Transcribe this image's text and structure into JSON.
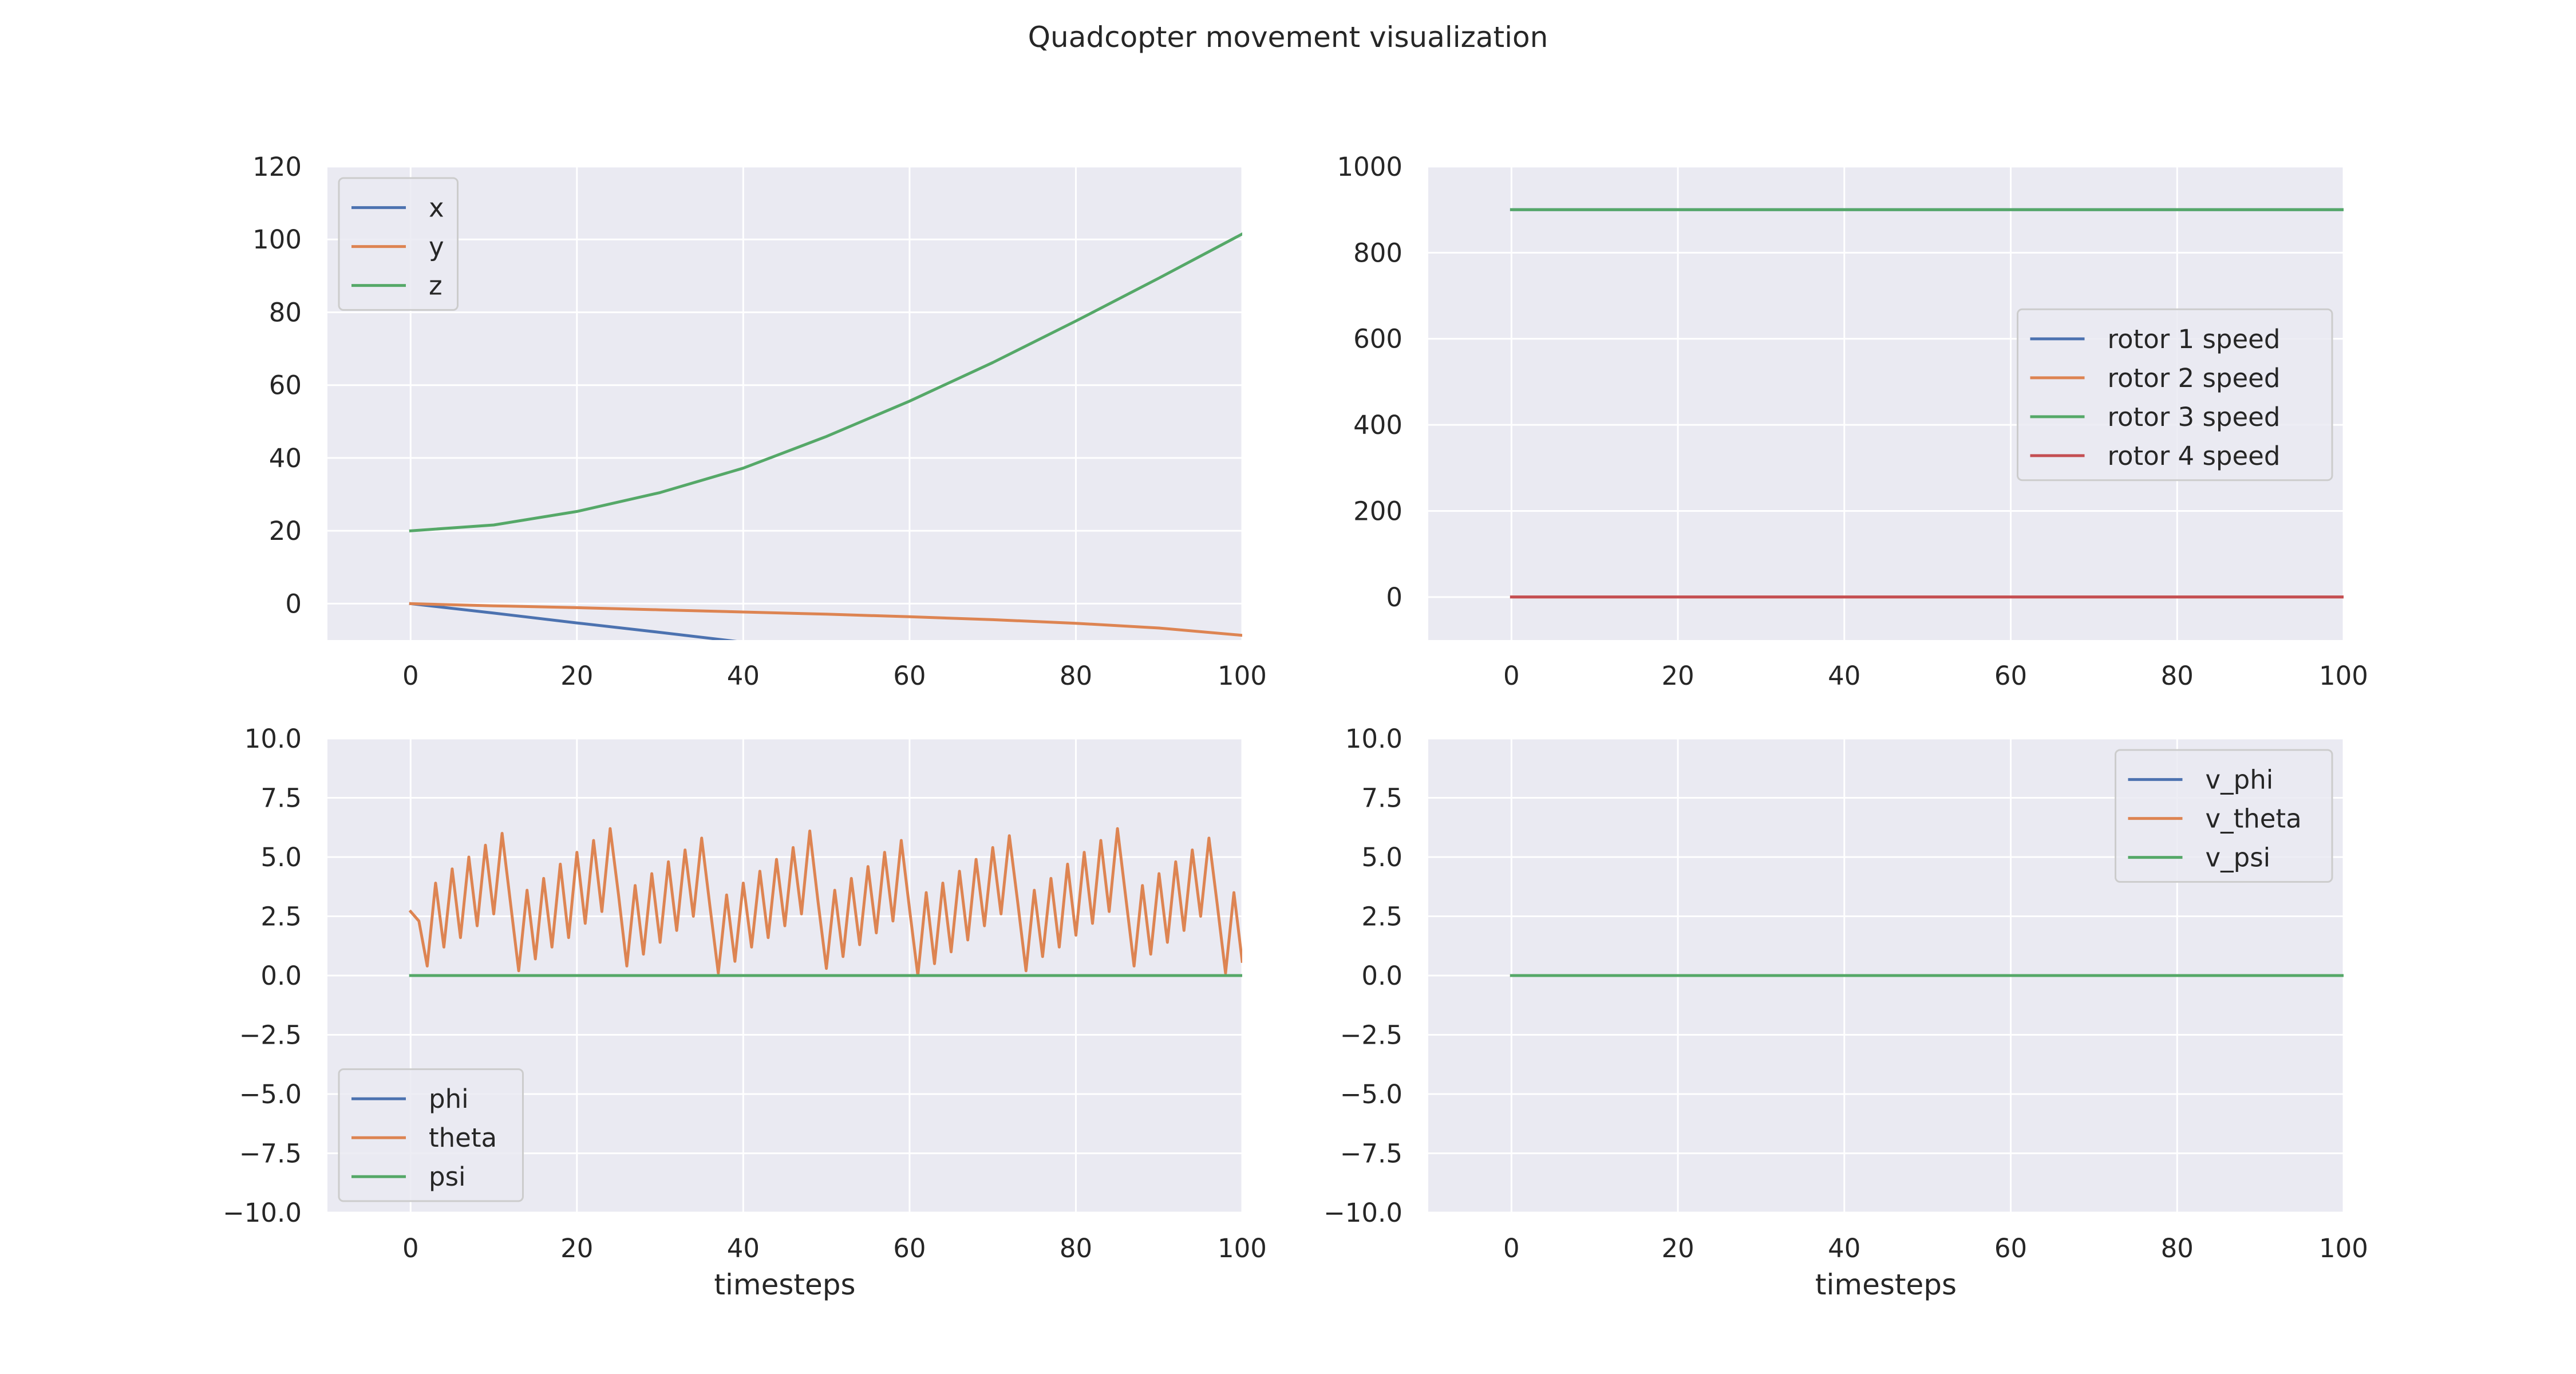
{
  "figure": {
    "title": "Quadcopter movement visualization"
  },
  "chart_data": [
    {
      "type": "line",
      "xlabel": "",
      "ylabel": "",
      "xlim": [
        -10,
        100
      ],
      "ylim": [
        -10,
        120
      ],
      "xticks": [
        0,
        20,
        40,
        60,
        80,
        100
      ],
      "yticks": [
        0,
        20,
        40,
        60,
        80,
        100,
        120
      ],
      "ytick_labels": [
        "0",
        "20",
        "40",
        "60",
        "80",
        "100",
        "120"
      ],
      "grid": true,
      "legend": "upper left",
      "series": [
        {
          "name": "x",
          "color": "#4c72b0",
          "x": [
            0,
            10,
            20,
            30,
            40,
            50
          ],
          "y": [
            0,
            -2.6,
            -5.3,
            -7.9,
            -10.6,
            -13.2
          ]
        },
        {
          "name": "y",
          "color": "#dd8452",
          "x": [
            0,
            10,
            20,
            30,
            40,
            50,
            60,
            70,
            80,
            90,
            100
          ],
          "y": [
            0,
            -0.6,
            -1.1,
            -1.7,
            -2.3,
            -2.9,
            -3.6,
            -4.4,
            -5.4,
            -6.7,
            -8.7
          ]
        },
        {
          "name": "z",
          "color": "#55a868",
          "x": [
            0,
            10,
            20,
            30,
            40,
            50,
            60,
            70,
            80,
            90,
            100
          ],
          "y": [
            20,
            21.6,
            25.3,
            30.5,
            37.2,
            45.9,
            55.6,
            66.2,
            77.6,
            89.4,
            101.5
          ]
        }
      ]
    },
    {
      "type": "line",
      "xlabel": "",
      "ylabel": "",
      "xlim": [
        -10,
        100
      ],
      "ylim": [
        -100,
        1000
      ],
      "xticks": [
        0,
        20,
        40,
        60,
        80,
        100
      ],
      "yticks": [
        0,
        200,
        400,
        600,
        800,
        1000
      ],
      "ytick_labels": [
        "0",
        "200",
        "400",
        "600",
        "800",
        "1000"
      ],
      "grid": true,
      "legend": "center right",
      "series": [
        {
          "name": "rotor 1 speed",
          "color": "#4c72b0",
          "x": [
            0,
            100
          ],
          "y": [
            900,
            900
          ]
        },
        {
          "name": "rotor 2 speed",
          "color": "#dd8452",
          "x": [
            0,
            100
          ],
          "y": [
            0,
            0
          ]
        },
        {
          "name": "rotor 3 speed",
          "color": "#55a868",
          "x": [
            0,
            100
          ],
          "y": [
            900,
            900
          ]
        },
        {
          "name": "rotor 4 speed",
          "color": "#c44e52",
          "x": [
            0,
            100
          ],
          "y": [
            0,
            0
          ]
        }
      ]
    },
    {
      "type": "line",
      "xlabel": "timesteps",
      "ylabel": "",
      "xlim": [
        -10,
        100
      ],
      "ylim": [
        -10,
        10
      ],
      "xticks": [
        0,
        20,
        40,
        60,
        80,
        100
      ],
      "yticks": [
        -10,
        -7.5,
        -5,
        -2.5,
        0,
        2.5,
        5,
        7.5,
        10
      ],
      "ytick_labels": [
        "−10.0",
        "−7.5",
        "−5.0",
        "−2.5",
        "0.0",
        "2.5",
        "5.0",
        "7.5",
        "10.0"
      ],
      "grid": true,
      "legend": "lower left",
      "series": [
        {
          "name": "phi",
          "color": "#4c72b0",
          "x": [
            0,
            100
          ],
          "y": [
            0,
            0
          ]
        },
        {
          "name": "theta",
          "color": "#dd8452",
          "x": [
            0,
            1,
            2,
            3,
            4,
            5,
            6,
            7,
            8,
            9,
            10,
            11,
            12,
            13,
            14,
            15,
            16,
            17,
            18,
            19,
            20,
            21,
            22,
            23,
            24,
            25,
            26,
            27,
            28,
            29,
            30,
            31,
            32,
            33,
            34,
            35,
            36,
            37,
            38,
            39,
            40,
            41,
            42,
            43,
            44,
            45,
            46,
            47,
            48,
            49,
            50,
            51,
            52,
            53,
            54,
            55,
            56,
            57,
            58,
            59,
            60,
            61,
            62,
            63,
            64,
            65,
            66,
            67,
            68,
            69,
            70,
            71,
            72,
            73,
            74,
            75,
            76,
            77,
            78,
            79,
            80,
            81,
            82,
            83,
            84,
            85,
            86,
            87,
            88,
            89,
            90,
            91,
            92,
            93,
            94,
            95,
            96,
            97,
            98,
            99,
            100
          ],
          "y": [
            2.7,
            2.3,
            0.4,
            3.9,
            1.2,
            4.5,
            1.6,
            5.0,
            2.1,
            5.5,
            2.6,
            6.0,
            3.1,
            0.2,
            3.6,
            0.7,
            4.1,
            1.2,
            4.7,
            1.6,
            5.2,
            2.2,
            5.7,
            2.7,
            6.2,
            3.4,
            0.4,
            3.8,
            0.9,
            4.3,
            1.4,
            4.8,
            1.9,
            5.3,
            2.5,
            5.8,
            2.9,
            0.1,
            3.4,
            0.6,
            3.9,
            1.2,
            4.4,
            1.6,
            4.9,
            2.1,
            5.4,
            2.6,
            6.1,
            3.1,
            0.3,
            3.6,
            0.8,
            4.1,
            1.3,
            4.6,
            1.8,
            5.2,
            2.3,
            5.7,
            2.8,
            0.0,
            3.5,
            0.5,
            3.9,
            1.0,
            4.4,
            1.5,
            4.9,
            2.1,
            5.4,
            2.6,
            5.9,
            3.1,
            0.2,
            3.6,
            0.8,
            4.1,
            1.2,
            4.7,
            1.7,
            5.2,
            2.2,
            5.7,
            2.7,
            6.2,
            3.3,
            0.4,
            3.8,
            0.9,
            4.3,
            1.4,
            4.8,
            1.9,
            5.3,
            2.5,
            5.8,
            3.0,
            0.1,
            3.5,
            0.6
          ]
        },
        {
          "name": "psi",
          "color": "#55a868",
          "x": [
            0,
            100
          ],
          "y": [
            0,
            0
          ]
        }
      ]
    },
    {
      "type": "line",
      "xlabel": "timesteps",
      "ylabel": "",
      "xlim": [
        -10,
        100
      ],
      "ylim": [
        -10,
        10
      ],
      "xticks": [
        0,
        20,
        40,
        60,
        80,
        100
      ],
      "yticks": [
        -10,
        -7.5,
        -5,
        -2.5,
        0,
        2.5,
        5,
        7.5,
        10
      ],
      "ytick_labels": [
        "−10.0",
        "−7.5",
        "−5.0",
        "−2.5",
        "0.0",
        "2.5",
        "5.0",
        "7.5",
        "10.0"
      ],
      "grid": true,
      "legend": "upper right",
      "series": [
        {
          "name": "v_phi",
          "color": "#4c72b0",
          "x": [
            0,
            100
          ],
          "y": [
            0,
            0
          ]
        },
        {
          "name": "v_theta",
          "color": "#dd8452",
          "x": [
            0,
            100
          ],
          "y": [
            0,
            0
          ]
        },
        {
          "name": "v_psi",
          "color": "#55a868",
          "x": [
            0,
            100
          ],
          "y": [
            0,
            0
          ]
        }
      ]
    }
  ]
}
